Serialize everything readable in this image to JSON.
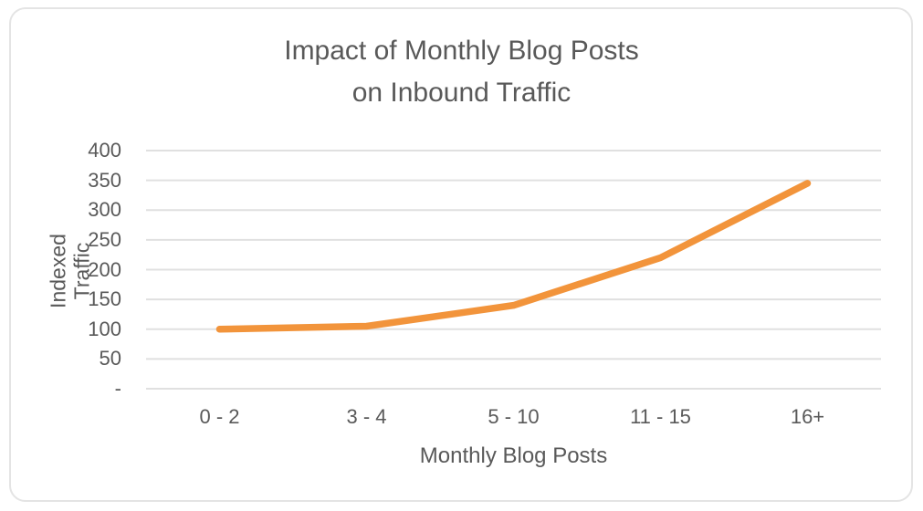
{
  "chart_data": {
    "type": "line",
    "title": "Impact of Monthly Blog Posts\non Inbound Traffic",
    "categories": [
      "0 - 2",
      "3 - 4",
      "5 - 10",
      "11 - 15",
      "16+"
    ],
    "values": [
      100,
      105,
      140,
      220,
      345
    ],
    "xlabel": "Monthly Blog Posts",
    "ylabel": "Indexed Traffic",
    "ylim": [
      0,
      400
    ],
    "y_tick_step": 50,
    "y_tick_labels": [
      "-",
      "50",
      "100",
      "150",
      "200",
      "250",
      "300",
      "350",
      "400"
    ],
    "grid": "horizontal-only",
    "legend": "none",
    "line_color": "#F2943B",
    "gridline_color": "#E0E0E0",
    "text_color": "#595959"
  }
}
